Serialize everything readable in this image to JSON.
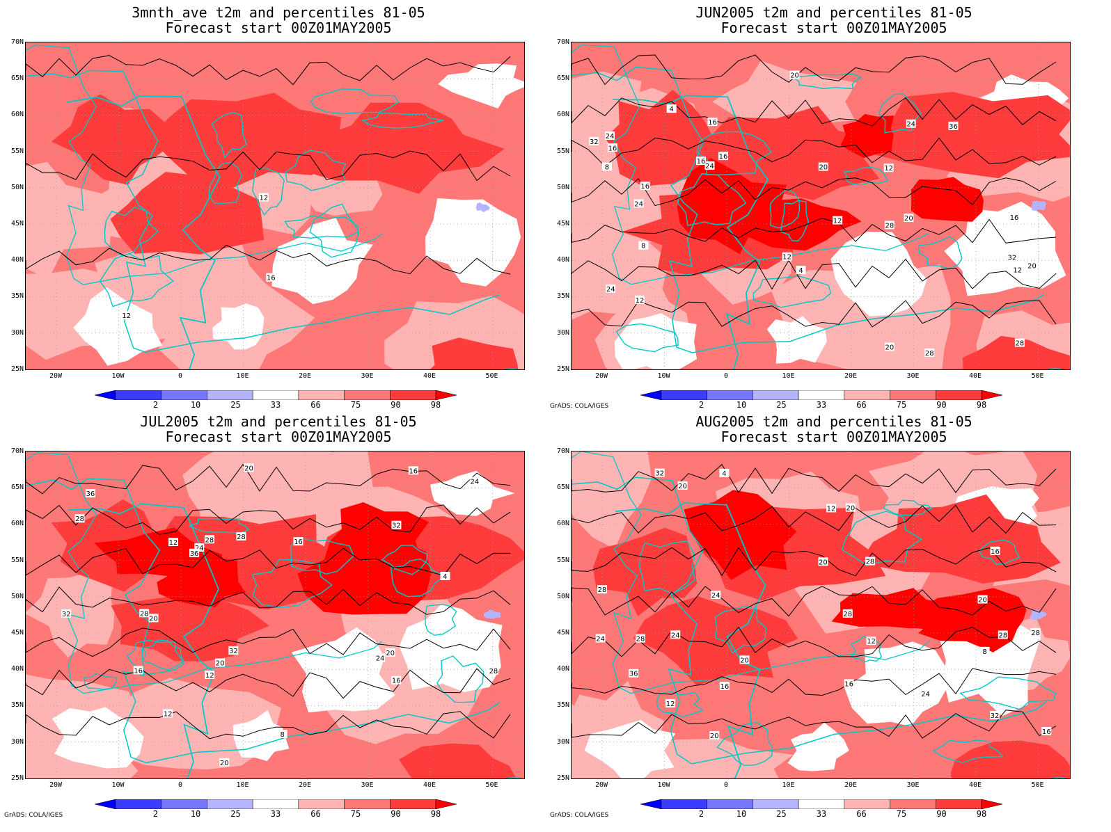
{
  "panels": [
    {
      "title1": "3mnth_ave t2m and percentiles 81-05",
      "title2": "Forecast start 00Z01MAY2005",
      "credit": ""
    },
    {
      "title1": "JUN2005 t2m and percentiles 81-05",
      "title2": "Forecast start 00Z01MAY2005",
      "credit": "GrADS: COLA/IGES"
    },
    {
      "title1": "JUL2005 t2m and percentiles 81-05",
      "title2": "Forecast start 00Z01MAY2005",
      "credit": "GrADS: COLA/IGES"
    },
    {
      "title1": "AUG2005 t2m and percentiles 81-05",
      "title2": "Forecast start 00Z01MAY2005",
      "credit": "GrADS: COLA/IGES"
    }
  ],
  "lat_labels": [
    "70N",
    "65N",
    "60N",
    "55N",
    "50N",
    "45N",
    "40N",
    "35N",
    "30N",
    "25N"
  ],
  "lon_labels": [
    "20W",
    "10W",
    "0",
    "10E",
    "20E",
    "30E",
    "40E",
    "50E"
  ],
  "colorbar": {
    "labels": [
      "2",
      "10",
      "25",
      "33",
      "66",
      "75",
      "90",
      "98"
    ],
    "colors": [
      "#0000ff",
      "#3c3cff",
      "#7878ff",
      "#b4b4ff",
      "#ffffff",
      "#ffb4b4",
      "#ff7878",
      "#ff3c3c",
      "#ff0000"
    ]
  },
  "contour_labels": [
    [
      "12",
      "16",
      "12"
    ],
    [
      "4",
      "4",
      "8",
      "12",
      "12",
      "8",
      "12",
      "16",
      "12",
      "12",
      "16",
      "16",
      "16",
      "20",
      "20",
      "20",
      "16",
      "16",
      "20",
      "24",
      "24",
      "28",
      "24",
      "24",
      "28",
      "32",
      "28",
      "32",
      "20",
      "36",
      "24"
    ],
    [
      "4",
      "8",
      "12",
      "12",
      "16",
      "16",
      "16",
      "16",
      "12",
      "20",
      "20",
      "24",
      "20",
      "20",
      "24",
      "28",
      "28",
      "32",
      "24",
      "36",
      "28",
      "32",
      "28",
      "36",
      "28",
      "32",
      "20"
    ],
    [
      "4",
      "8",
      "12",
      "12",
      "12",
      "16",
      "16",
      "16",
      "16",
      "20",
      "20",
      "20",
      "20",
      "20",
      "24",
      "24",
      "20",
      "28",
      "24",
      "28",
      "28",
      "32",
      "24",
      "36",
      "28",
      "28",
      "32",
      "28"
    ]
  ]
}
